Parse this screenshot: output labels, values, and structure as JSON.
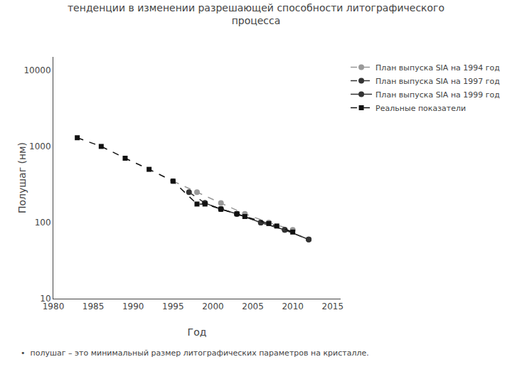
{
  "chart_data": {
    "type": "line",
    "title": "тенденции в изменении разрешающей способности литографического\nпроцесса",
    "x_label": "Год",
    "y_label": "Полушаг (нм)",
    "annotations": [
      "•  полушаг – это минимальный размер литографических параметров на кристалле."
    ],
    "log": "y",
    "grid": false,
    "legend": "upper right",
    "xlim": [
      1980,
      2016
    ],
    "ylim": [
      10,
      15000
    ],
    "xticks": [
      1980,
      1985,
      1990,
      1995,
      2000,
      2005,
      2010,
      2015
    ],
    "yticks": [
      10,
      100,
      1000,
      10000
    ],
    "series": [
      {
        "name": "План выпуска SIA на 1994 год",
        "color": "#999999",
        "marker": "circle",
        "line_style": "dashed",
        "x": [
          1995,
          1998,
          2001,
          2004,
          2007,
          2010
        ],
        "values": [
          350,
          250,
          180,
          130,
          100,
          80
        ]
      },
      {
        "name": "План выпуска SIA на 1997 год",
        "color": "#333333",
        "marker": "circle",
        "line_style": "dashed",
        "x": [
          1997,
          1999,
          2001,
          2003,
          2006,
          2009,
          2012
        ],
        "values": [
          250,
          180,
          150,
          130,
          100,
          80,
          60
        ]
      },
      {
        "name": "План выпуска SIA на 1999 год",
        "color": "#333333",
        "marker": "circle",
        "line_style": "solid",
        "x": [
          1999,
          2001,
          2003,
          2006,
          2009,
          2012
        ],
        "values": [
          180,
          150,
          130,
          100,
          80,
          60
        ]
      },
      {
        "name": "Реальные показатели",
        "color": "#111111",
        "marker": "square",
        "line_style": "dashed",
        "x": [
          1983,
          1986,
          1989,
          1992,
          1995,
          1998,
          1999,
          2001,
          2003,
          2004,
          2007,
          2008,
          2010
        ],
        "values": [
          1300,
          1000,
          700,
          500,
          350,
          175,
          175,
          150,
          130,
          120,
          97,
          90,
          75
        ]
      }
    ]
  }
}
